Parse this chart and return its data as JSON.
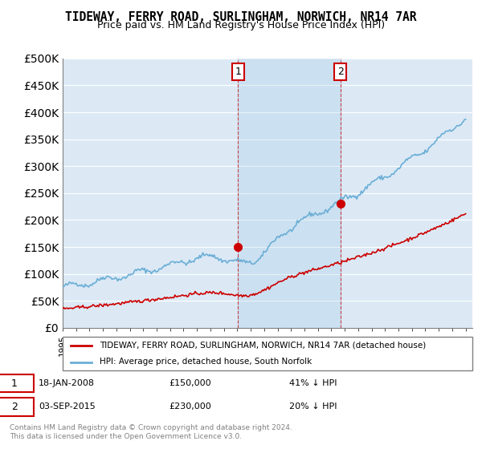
{
  "title": "TIDEWAY, FERRY ROAD, SURLINGHAM, NORWICH, NR14 7AR",
  "subtitle": "Price paid vs. HM Land Registry's House Price Index (HPI)",
  "legend_line1": "TIDEWAY, FERRY ROAD, SURLINGHAM, NORWICH, NR14 7AR (detached house)",
  "legend_line2": "HPI: Average price, detached house, South Norfolk",
  "sale1_date": "18-JAN-2008",
  "sale1_price": 150000,
  "sale1_label": "41% ↓ HPI",
  "sale2_date": "03-SEP-2015",
  "sale2_price": 230000,
  "sale2_label": "20% ↓ HPI",
  "note": "Contains HM Land Registry data © Crown copyright and database right 2024.\nThis data is licensed under the Open Government Licence v3.0.",
  "hpi_color": "#6baed6",
  "sale_color": "#cc0000",
  "background_color": "#dce9f5",
  "plot_bg": "#dce9f5",
  "ylim": [
    0,
    500000
  ],
  "xlim_start": 1995.0,
  "xlim_end": 2025.5,
  "sale1_x": 2008.05,
  "sale2_x": 2015.67,
  "marker_color": "#cc0000"
}
